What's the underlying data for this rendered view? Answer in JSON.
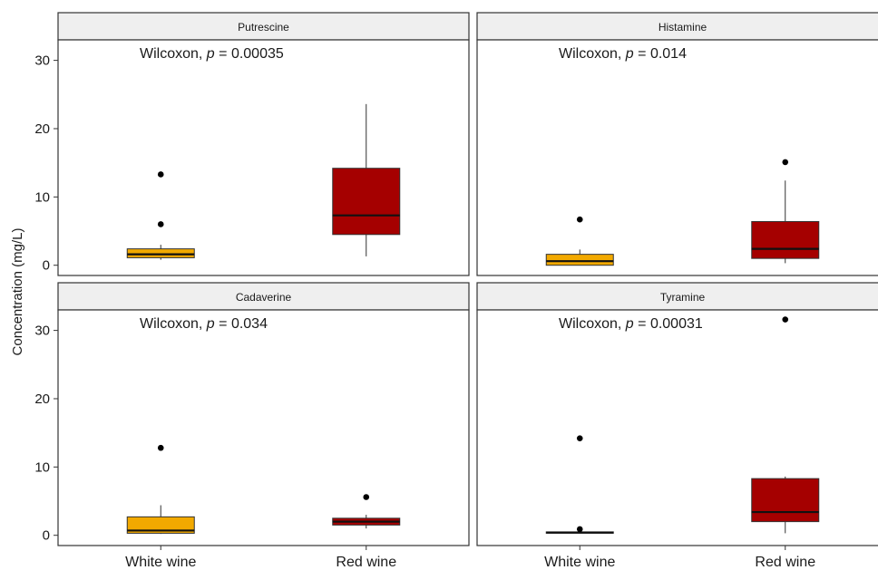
{
  "chart_data": {
    "type": "boxplot",
    "ylabel": "Concentration (mg/L)",
    "xlabel": "",
    "ylim": [
      -1.5,
      33
    ],
    "y_ticks": [
      0,
      10,
      20,
      30
    ],
    "categories": [
      "White wine",
      "Red wine"
    ],
    "colors": {
      "White wine": "#F2A900",
      "Red wine": "#A50000"
    },
    "grid": false,
    "legend": "none",
    "panels": [
      {
        "title": "Putrescine",
        "annotation": {
          "label": "Wilcoxon, ",
          "p_symbol": "p",
          "p_value": " = 0.00035"
        },
        "boxes": [
          {
            "group": "White wine",
            "whisker_low": 0.8,
            "q1": 1.1,
            "median": 1.6,
            "q3": 2.4,
            "whisker_high": 3.0,
            "outliers": [
              6.0,
              13.3
            ]
          },
          {
            "group": "Red wine",
            "whisker_low": 1.3,
            "q1": 4.5,
            "median": 7.3,
            "q3": 14.2,
            "whisker_high": 23.6,
            "outliers": []
          }
        ]
      },
      {
        "title": "Histamine",
        "annotation": {
          "label": "Wilcoxon, ",
          "p_symbol": "p",
          "p_value": " = 0.014"
        },
        "boxes": [
          {
            "group": "White wine",
            "whisker_low": 0.0,
            "q1": 0.0,
            "median": 0.6,
            "q3": 1.6,
            "whisker_high": 2.3,
            "outliers": [
              6.7
            ]
          },
          {
            "group": "Red wine",
            "whisker_low": 0.3,
            "q1": 1.0,
            "median": 2.4,
            "q3": 6.4,
            "whisker_high": 12.4,
            "outliers": [
              15.1
            ]
          }
        ]
      },
      {
        "title": "Cadaverine",
        "annotation": {
          "label": "Wilcoxon, ",
          "p_symbol": "p",
          "p_value": " = 0.034"
        },
        "boxes": [
          {
            "group": "White wine",
            "whisker_low": 0.2,
            "q1": 0.3,
            "median": 0.7,
            "q3": 2.7,
            "whisker_high": 4.4,
            "outliers": [
              12.8
            ]
          },
          {
            "group": "Red wine",
            "whisker_low": 1.0,
            "q1": 1.5,
            "median": 2.0,
            "q3": 2.5,
            "whisker_high": 3.0,
            "outliers": [
              5.6
            ]
          }
        ]
      },
      {
        "title": "Tyramine",
        "annotation": {
          "label": "Wilcoxon, ",
          "p_symbol": "p",
          "p_value": " = 0.00031"
        },
        "boxes": [
          {
            "group": "White wine",
            "whisker_low": 0.3,
            "q1": 0.3,
            "median": 0.4,
            "q3": 0.5,
            "whisker_high": 0.6,
            "outliers": [
              0.9,
              14.2
            ]
          },
          {
            "group": "Red wine",
            "whisker_low": 0.3,
            "q1": 2.0,
            "median": 3.4,
            "q3": 8.3,
            "whisker_high": 8.6,
            "outliers": [
              31.6
            ]
          }
        ]
      }
    ]
  }
}
